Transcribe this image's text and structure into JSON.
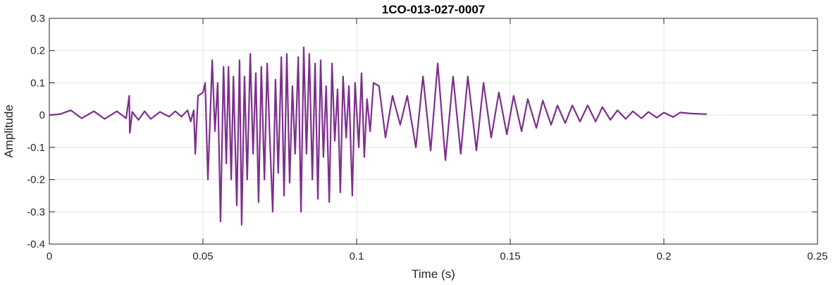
{
  "chart_data": {
    "type": "line",
    "title": "1CO-013-027-0007",
    "xlabel": "Time (s)",
    "ylabel": "Amplitude",
    "xlim": [
      0,
      0.25
    ],
    "ylim": [
      -0.4,
      0.3
    ],
    "xticks": [
      0,
      0.05,
      0.1,
      0.15,
      0.2,
      0.25
    ],
    "xtick_labels": [
      "0",
      "0.05",
      "0.1",
      "0.15",
      "0.2",
      "0.25"
    ],
    "yticks": [
      -0.4,
      -0.3,
      -0.2,
      -0.1,
      0,
      0.1,
      0.2,
      0.3
    ],
    "ytick_labels": [
      "-0.4",
      "-0.3",
      "-0.2",
      "-0.1",
      "0",
      "0.1",
      "0.2",
      "0.3"
    ],
    "grid": true,
    "line_color": "#7E2F8E",
    "series": [
      {
        "points": [
          [
            0,
            0
          ],
          [
            0.0035,
            0.003
          ],
          [
            0.007,
            0.015
          ],
          [
            0.0105,
            -0.01
          ],
          [
            0.0145,
            0.012
          ],
          [
            0.018,
            -0.012
          ],
          [
            0.022,
            0.012
          ],
          [
            0.025,
            -0.01
          ],
          [
            0.026,
            0.06
          ],
          [
            0.0262,
            -0.055
          ],
          [
            0.027,
            0.01
          ],
          [
            0.029,
            -0.015
          ],
          [
            0.031,
            0.012
          ],
          [
            0.033,
            -0.012
          ],
          [
            0.036,
            0.01
          ],
          [
            0.039,
            -0.005
          ],
          [
            0.041,
            0.012
          ],
          [
            0.043,
            -0.005
          ],
          [
            0.045,
            0.015
          ],
          [
            0.046,
            -0.02
          ],
          [
            0.047,
            0.015
          ],
          [
            0.0475,
            -0.12
          ],
          [
            0.0484,
            0.06
          ],
          [
            0.05,
            0.07
          ],
          [
            0.0507,
            0.1
          ],
          [
            0.0516,
            -0.2
          ],
          [
            0.053,
            0.17
          ],
          [
            0.0539,
            -0.05
          ],
          [
            0.0548,
            0.1
          ],
          [
            0.0557,
            -0.33
          ],
          [
            0.0567,
            0.15
          ],
          [
            0.0576,
            -0.15
          ],
          [
            0.0583,
            0.15
          ],
          [
            0.0592,
            -0.2
          ],
          [
            0.0599,
            0.12
          ],
          [
            0.061,
            -0.28
          ],
          [
            0.0619,
            0.17
          ],
          [
            0.0626,
            -0.34
          ],
          [
            0.0635,
            0.12
          ],
          [
            0.0644,
            -0.2
          ],
          [
            0.0654,
            0.19
          ],
          [
            0.0663,
            -0.12
          ],
          [
            0.0672,
            0.13
          ],
          [
            0.0681,
            -0.27
          ],
          [
            0.069,
            0.15
          ],
          [
            0.07,
            -0.2
          ],
          [
            0.0709,
            0.16
          ],
          [
            0.0718,
            -0.08
          ],
          [
            0.0727,
            -0.3
          ],
          [
            0.0736,
            0.11
          ],
          [
            0.0745,
            -0.18
          ],
          [
            0.0755,
            0.18
          ],
          [
            0.0764,
            -0.25
          ],
          [
            0.0773,
            0.19
          ],
          [
            0.0782,
            -0.21
          ],
          [
            0.0791,
            0.09
          ],
          [
            0.08,
            -0.12
          ],
          [
            0.081,
            0.18
          ],
          [
            0.0819,
            -0.3
          ],
          [
            0.0828,
            0.21
          ],
          [
            0.0837,
            -0.12
          ],
          [
            0.0846,
            0.19
          ],
          [
            0.0856,
            -0.2
          ],
          [
            0.0865,
            0.16
          ],
          [
            0.0874,
            -0.26
          ],
          [
            0.0883,
            0.17
          ],
          [
            0.0892,
            -0.13
          ],
          [
            0.0901,
            0.09
          ],
          [
            0.0911,
            -0.27
          ],
          [
            0.092,
            0.16
          ],
          [
            0.0929,
            -0.08
          ],
          [
            0.0938,
            0.08
          ],
          [
            0.0947,
            -0.24
          ],
          [
            0.0956,
            0.12
          ],
          [
            0.0966,
            -0.07
          ],
          [
            0.0975,
            0.09
          ],
          [
            0.0986,
            -0.25
          ],
          [
            0.0995,
            0.1
          ],
          [
            0.1007,
            -0.1
          ],
          [
            0.1016,
            0.13
          ],
          [
            0.1025,
            -0.13
          ],
          [
            0.1034,
            0.05
          ],
          [
            0.1044,
            -0.05
          ],
          [
            0.1055,
            0.1
          ],
          [
            0.1073,
            0.09
          ],
          [
            0.1094,
            -0.07
          ],
          [
            0.1117,
            0.06
          ],
          [
            0.1142,
            -0.03
          ],
          [
            0.1165,
            0.06
          ],
          [
            0.1193,
            -0.1
          ],
          [
            0.1216,
            0.12
          ],
          [
            0.1241,
            -0.11
          ],
          [
            0.1264,
            0.16
          ],
          [
            0.1289,
            -0.14
          ],
          [
            0.1314,
            0.12
          ],
          [
            0.1339,
            -0.12
          ],
          [
            0.1362,
            0.12
          ],
          [
            0.139,
            -0.11
          ],
          [
            0.1413,
            0.1
          ],
          [
            0.1438,
            -0.07
          ],
          [
            0.1463,
            0.07
          ],
          [
            0.1489,
            -0.06
          ],
          [
            0.1511,
            0.06
          ],
          [
            0.1537,
            -0.05
          ],
          [
            0.1557,
            0.05
          ],
          [
            0.1585,
            -0.04
          ],
          [
            0.1606,
            0.045
          ],
          [
            0.1633,
            -0.03
          ],
          [
            0.1654,
            0.03
          ],
          [
            0.1679,
            -0.025
          ],
          [
            0.1702,
            0.03
          ],
          [
            0.1727,
            -0.02
          ],
          [
            0.1752,
            0.03
          ],
          [
            0.1778,
            -0.02
          ],
          [
            0.18,
            0.025
          ],
          [
            0.1826,
            -0.015
          ],
          [
            0.1849,
            0.015
          ],
          [
            0.1876,
            -0.012
          ],
          [
            0.1899,
            0.012
          ],
          [
            0.1927,
            -0.01
          ],
          [
            0.195,
            0.01
          ],
          [
            0.1977,
            -0.008
          ],
          [
            0.2,
            0.008
          ],
          [
            0.203,
            -0.006
          ],
          [
            0.2053,
            0.008
          ],
          [
            0.2087,
            0.005
          ],
          [
            0.214,
            0.003
          ]
        ]
      }
    ]
  }
}
